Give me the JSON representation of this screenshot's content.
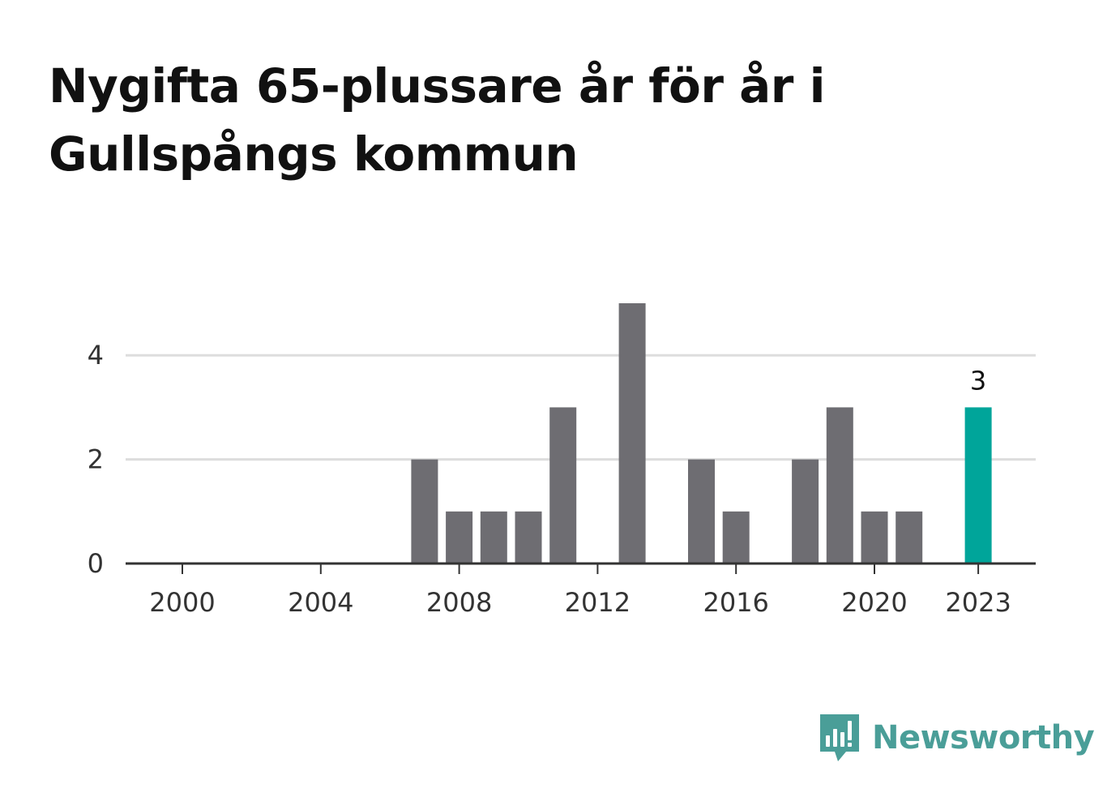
{
  "title": "Nygifta 65-plussare år för år i Gullspångs kommun",
  "brand": {
    "name": "Newsworthy",
    "color": "#4a9e98",
    "icon": "bar-chart-speech-bubble-icon"
  },
  "colors": {
    "bar": "#6e6d72",
    "highlight": "#00a59a",
    "grid": "#dddddd",
    "axis": "#333333"
  },
  "chart_data": {
    "type": "bar",
    "title": "Nygifta 65-plussare år för år i Gullspångs kommun",
    "xlabel": "",
    "ylabel": "",
    "x": [
      2000,
      2001,
      2002,
      2003,
      2004,
      2005,
      2006,
      2007,
      2008,
      2009,
      2010,
      2011,
      2012,
      2013,
      2014,
      2015,
      2016,
      2017,
      2018,
      2019,
      2020,
      2021,
      2022,
      2023
    ],
    "values": [
      0,
      0,
      0,
      0,
      0,
      0,
      0,
      2,
      1,
      1,
      1,
      3,
      0,
      5,
      0,
      2,
      1,
      0,
      2,
      3,
      1,
      1,
      0,
      3
    ],
    "xticks": [
      2000,
      2004,
      2008,
      2012,
      2016,
      2020,
      2023
    ],
    "yticks": [
      0,
      2,
      4
    ],
    "ylim": [
      0,
      5
    ],
    "highlight": {
      "x": 2023,
      "label": "3"
    },
    "grid": true,
    "legend": "none"
  }
}
